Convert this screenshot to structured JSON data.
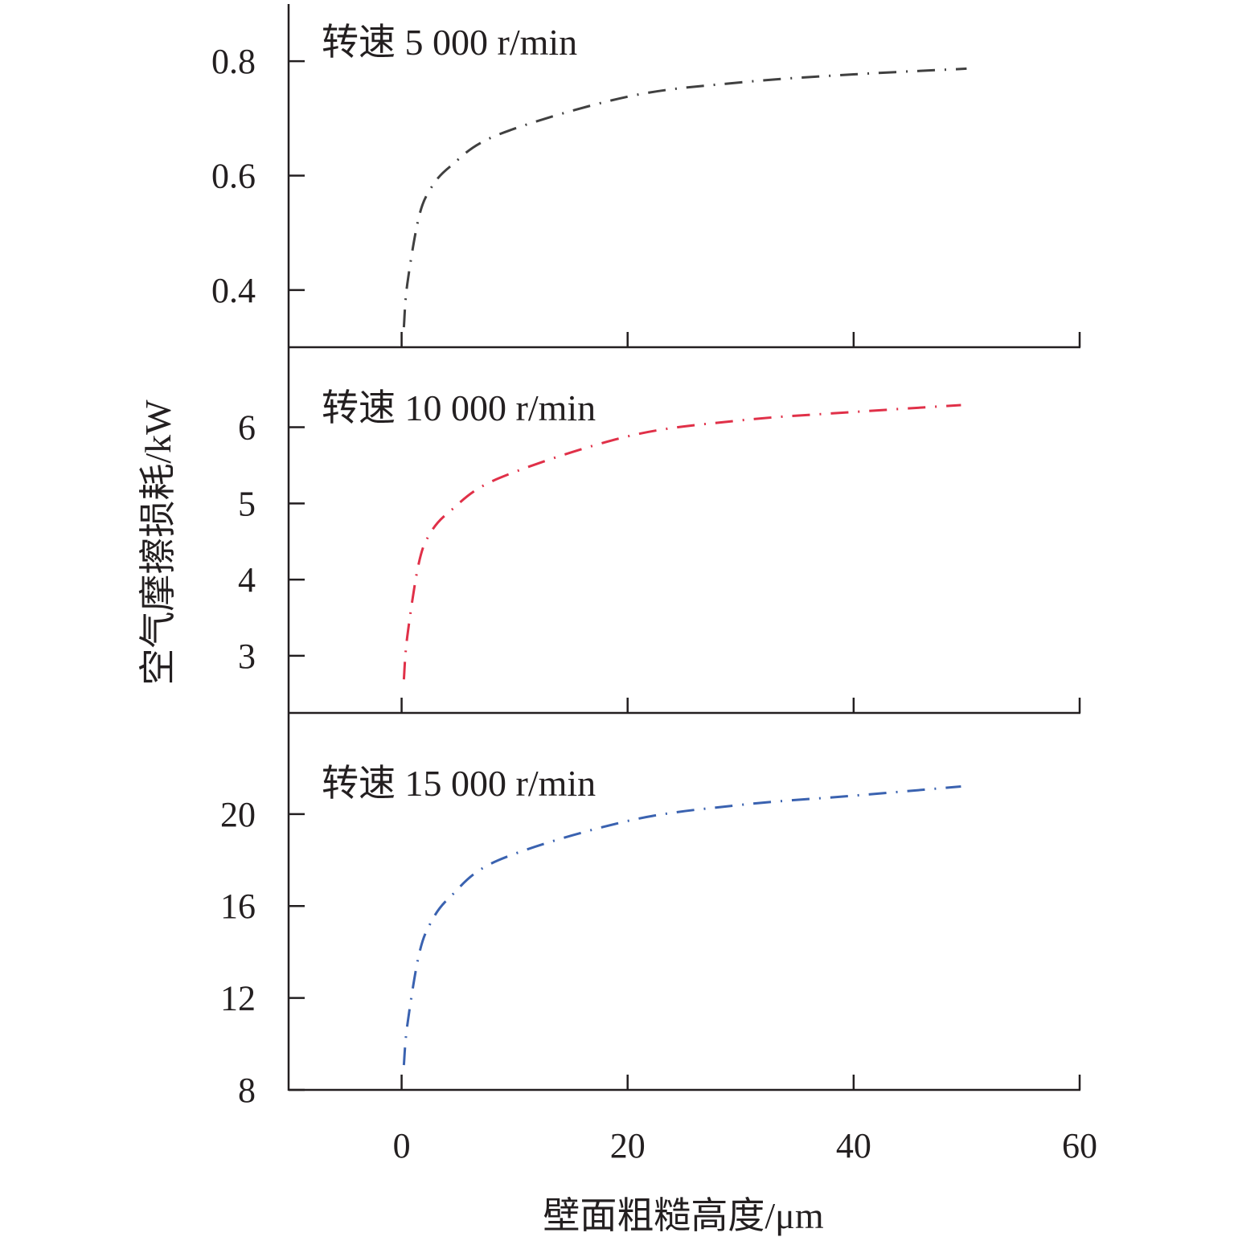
{
  "chart_data": {
    "type": "line",
    "xlabel": "壁面粗糙高度/μm",
    "ylabel": "空气摩擦损耗/kW",
    "xlim": [
      -10,
      60
    ],
    "xticks": [
      0,
      20,
      40,
      60
    ],
    "xtick_labels": [
      "0",
      "20",
      "40",
      "60"
    ],
    "grid": false,
    "panels": [
      {
        "title": "转速 5 000 r/min",
        "color": "#404040",
        "ylim": [
          0.3,
          0.9
        ],
        "yticks": [
          0.4,
          0.6,
          0.8
        ],
        "ytick_labels": [
          "0.4",
          "0.6",
          "0.8"
        ],
        "x": [
          0.2,
          0.5,
          1.5,
          2.5,
          4.3,
          8.6,
          20,
          30,
          40,
          50
        ],
        "y": [
          0.335,
          0.41,
          0.525,
          0.575,
          0.616,
          0.672,
          0.738,
          0.763,
          0.777,
          0.787
        ]
      },
      {
        "title": "转速 10 000 r/min",
        "color": "#e03048",
        "ylim": [
          2.25,
          7.05
        ],
        "yticks": [
          3,
          4,
          5,
          6
        ],
        "ytick_labels": [
          "3",
          "4",
          "5",
          "6"
        ],
        "x": [
          0.2,
          0.5,
          1.5,
          2.5,
          4.3,
          8.6,
          20,
          30,
          40,
          49.5
        ],
        "y": [
          2.69,
          3.25,
          4.2,
          4.6,
          4.9,
          5.33,
          5.88,
          6.09,
          6.2,
          6.29
        ]
      },
      {
        "title": "转速 15 000 r/min",
        "color": "#3a62b0",
        "ylim": [
          8,
          24.4
        ],
        "yticks": [
          8,
          12,
          16,
          20
        ],
        "ytick_labels": [
          "8",
          "12",
          "16",
          "20"
        ],
        "x": [
          0.2,
          0.5,
          1.5,
          2.5,
          4.3,
          8.6,
          20,
          30,
          40,
          49.5
        ],
        "y": [
          9.08,
          10.8,
          13.8,
          15.2,
          16.4,
          18.0,
          19.7,
          20.4,
          20.8,
          21.2
        ]
      }
    ]
  }
}
